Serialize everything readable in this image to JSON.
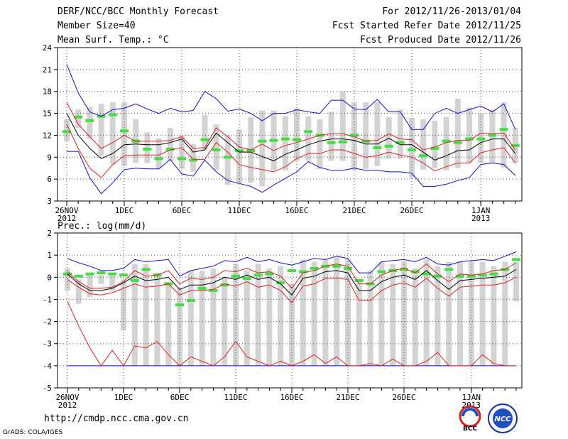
{
  "header": {
    "left": [
      "DERF/NCC/BCC Monthly Forecast",
      "Member Size=40",
      "Mean Surf. Temp.: °C"
    ],
    "right": [
      "For 2012/11/26-2013/01/04",
      "Fcst Started Refer Date 2012/11/25",
      "Fcst Produced Date 2012/11/26"
    ]
  },
  "footer": {
    "url": "http://cmdp.ncc.cma.gov.cn",
    "credit": "GrADS: COLA/IGES"
  },
  "logos": [
    {
      "name": "BCC",
      "label": "BCC"
    },
    {
      "name": "NCC",
      "label": "NCC"
    }
  ],
  "colors": {
    "box": "#d3d3d3",
    "median": "#44dd44",
    "mean": "#000000",
    "sigma": "#dd2222",
    "extreme": "#1111cc",
    "grid": "#555555"
  },
  "chart_data": [
    {
      "type": "box-ensemble",
      "title": "Mean Surf. Temp.: °C",
      "ylim": [
        3,
        24
      ],
      "yticks": [
        3,
        6,
        9,
        12,
        15,
        18,
        21,
        24
      ],
      "xticks": [
        {
          "day": 0,
          "label": "26NOV",
          "sub": "2012"
        },
        {
          "day": 5,
          "label": "1DEC",
          "sub": ""
        },
        {
          "day": 10,
          "label": "6DEC",
          "sub": ""
        },
        {
          "day": 15,
          "label": "11DEC",
          "sub": ""
        },
        {
          "day": 20,
          "label": "16DEC",
          "sub": ""
        },
        {
          "day": 25,
          "label": "21DEC",
          "sub": ""
        },
        {
          "day": 30,
          "label": "26DEC",
          "sub": ""
        },
        {
          "day": 36,
          "label": "1JAN",
          "sub": "2013"
        }
      ],
      "max": [
        21.7,
        17.8,
        15.2,
        14.6,
        15.5,
        15.7,
        16.3,
        15.6,
        15.0,
        15.7,
        15.2,
        15.4,
        18.0,
        17.0,
        15.3,
        15.6,
        15.0,
        14.0,
        15.0,
        15.0,
        15.5,
        15.2,
        15.0,
        16.8,
        16.8,
        15.6,
        15.5,
        16.9,
        15.2,
        15.2,
        12.8,
        12.8,
        15.0,
        15.7,
        15.0,
        15.5,
        16.0,
        15.2,
        16.3,
        12.8
      ],
      "plus1": [
        16.5,
        13.5,
        11.8,
        10.2,
        11.0,
        12.0,
        11.2,
        11.2,
        11.2,
        11.3,
        11.8,
        10.2,
        10.3,
        13.0,
        11.8,
        10.4,
        10.0,
        10.8,
        9.9,
        10.6,
        11.0,
        11.5,
        12.0,
        12.2,
        12.2,
        11.8,
        11.2,
        11.3,
        12.2,
        11.5,
        11.4,
        10.0,
        10.4,
        11.0,
        11.3,
        11.3,
        12.3,
        12.2,
        12.3,
        10.0
      ],
      "mean": [
        15.0,
        12.0,
        10.2,
        8.8,
        9.5,
        10.7,
        10.8,
        10.7,
        10.7,
        11.0,
        11.5,
        9.7,
        10.0,
        12.3,
        11.0,
        9.7,
        9.7,
        9.1,
        8.5,
        9.4,
        10.0,
        10.7,
        11.2,
        11.5,
        11.5,
        11.3,
        10.8,
        10.8,
        11.6,
        10.7,
        10.7,
        9.7,
        8.6,
        9.2,
        9.9,
        10.0,
        11.0,
        11.5,
        11.5,
        9.5
      ],
      "minus1": [
        13.5,
        10.2,
        7.5,
        6.2,
        8.0,
        9.2,
        9.3,
        9.3,
        9.3,
        10.0,
        10.3,
        8.7,
        8.7,
        11.0,
        9.7,
        8.0,
        7.6,
        7.3,
        7.0,
        7.7,
        8.8,
        9.5,
        9.5,
        10.0,
        10.0,
        9.5,
        9.0,
        9.2,
        9.7,
        9.3,
        9.0,
        8.2,
        7.1,
        7.7,
        8.2,
        8.2,
        9.6,
        10.0,
        10.3,
        8.2
      ],
      "min": [
        9.8,
        9.8,
        6.2,
        4.0,
        5.5,
        7.3,
        7.5,
        7.4,
        7.4,
        8.7,
        6.7,
        6.4,
        8.6,
        7.0,
        5.8,
        5.4,
        5.0,
        4.2,
        5.2,
        6.1,
        7.0,
        8.4,
        7.6,
        7.2,
        7.2,
        7.5,
        7.2,
        7.2,
        7.0,
        7.0,
        6.8,
        5.0,
        5.0,
        5.3,
        5.8,
        6.2,
        8.0,
        8.2,
        8.0,
        6.5
      ],
      "boxTop": [
        14.2,
        15.5,
        15.9,
        16.3,
        16.5,
        16.5,
        14.2,
        12.4,
        11.6,
        13.0,
        12.0,
        10.8,
        14.8,
        13.5,
        12.0,
        12.8,
        14.5,
        15.4,
        15.4,
        14.6,
        15.7,
        14.6,
        14.2,
        15.2,
        18.0,
        16.5,
        16.5,
        16.5,
        14.5,
        15.5,
        14.4,
        14.2,
        14.0,
        14.5,
        17.0,
        15.8,
        15.0,
        15.5,
        16.5,
        13.0
      ],
      "boxBot": [
        11.2,
        13.0,
        11.5,
        9.2,
        8.0,
        7.8,
        8.2,
        8.2,
        7.4,
        8.5,
        7.4,
        7.0,
        10.0,
        7.2,
        5.2,
        5.4,
        5.5,
        5.0,
        7.2,
        7.2,
        8.5,
        8.5,
        7.4,
        8.5,
        8.5,
        7.2,
        7.4,
        7.8,
        8.8,
        8.8,
        6.2,
        7.3,
        7.5,
        7.2,
        7.5,
        8.2,
        8.2,
        8.2,
        7.6,
        8.2
      ],
      "median": [
        12.5,
        14.5,
        14.0,
        14.6,
        14.8,
        12.6,
        11.2,
        10.1,
        8.8,
        10.1,
        8.8,
        8.6,
        11.4,
        10.0,
        9.0,
        9.9,
        9.9,
        11.2,
        11.3,
        11.5,
        11.4,
        12.5,
        12.0,
        11.0,
        11.1,
        12.0,
        11.2,
        10.3,
        10.5,
        11.0,
        10.0,
        9.2,
        10.2,
        11.2,
        11.0,
        11.5,
        11.5,
        12.0,
        12.8,
        10.6
      ]
    },
    {
      "type": "box-ensemble",
      "title": "Prec.: log(mm/d)",
      "ylim": [
        -5,
        2
      ],
      "yticks": [
        -5,
        -4,
        -3,
        -2,
        -1,
        0,
        1,
        2
      ],
      "xticks": [
        {
          "day": 0,
          "label": "26NOV",
          "sub": "2012"
        },
        {
          "day": 5,
          "label": "1DEC",
          "sub": ""
        },
        {
          "day": 10,
          "label": "6DEC",
          "sub": ""
        },
        {
          "day": 15,
          "label": "11DEC",
          "sub": ""
        },
        {
          "day": 20,
          "label": "16DEC",
          "sub": ""
        },
        {
          "day": 25,
          "label": "21DEC",
          "sub": ""
        },
        {
          "day": 30,
          "label": "26DEC",
          "sub": ""
        },
        {
          "day": 36,
          "label": "1JAN",
          "sub": "2013"
        }
      ],
      "max": [
        0.85,
        0.65,
        0.5,
        0.3,
        0.3,
        0.4,
        0.8,
        0.7,
        0.75,
        0.8,
        0.05,
        0.3,
        0.4,
        0.5,
        0.75,
        0.7,
        0.9,
        0.7,
        0.8,
        0.65,
        0.55,
        0.7,
        0.85,
        0.8,
        0.95,
        0.85,
        0.2,
        0.2,
        0.7,
        0.75,
        0.8,
        0.7,
        0.9,
        0.6,
        0.55,
        0.7,
        0.75,
        0.8,
        0.75,
        0.95,
        1.15
      ],
      "plus1": [
        0.25,
        -0.2,
        -0.5,
        -0.5,
        -0.45,
        -0.2,
        0.3,
        0.05,
        0.1,
        0.3,
        -0.3,
        -0.05,
        -0.1,
        0.0,
        0.3,
        0.25,
        0.4,
        0.2,
        0.25,
        0.05,
        -0.5,
        0.2,
        0.3,
        0.5,
        0.6,
        0.5,
        -0.3,
        -0.3,
        0.1,
        0.3,
        0.4,
        0.2,
        0.6,
        0.15,
        -0.2,
        0.15,
        0.1,
        0.15,
        0.3,
        0.35,
        0.65
      ],
      "mean": [
        0.15,
        -0.3,
        -0.6,
        -0.6,
        -0.5,
        -0.25,
        0.05,
        -0.15,
        -0.1,
        0.0,
        -0.55,
        -0.35,
        -0.35,
        -0.25,
        0.0,
        -0.1,
        0.1,
        -0.1,
        0.0,
        -0.3,
        -0.8,
        -0.05,
        0.05,
        0.25,
        0.3,
        0.2,
        -0.6,
        -0.6,
        -0.2,
        0.0,
        0.1,
        -0.1,
        0.3,
        -0.15,
        -0.55,
        -0.15,
        -0.1,
        -0.05,
        0.0,
        0.05,
        0.35
      ],
      "minus1": [
        -0.1,
        -0.45,
        -0.75,
        -0.8,
        -0.7,
        -0.5,
        -0.3,
        -0.45,
        -0.4,
        -0.3,
        -0.8,
        -0.6,
        -0.6,
        -0.55,
        -0.3,
        -0.4,
        -0.2,
        -0.45,
        -0.35,
        -0.6,
        -1.15,
        -0.4,
        -0.3,
        -0.05,
        -0.05,
        -0.1,
        -1.05,
        -1.05,
        -0.6,
        -0.35,
        -0.25,
        -0.45,
        -0.05,
        -0.5,
        -0.85,
        -0.45,
        -0.4,
        -0.35,
        -0.35,
        -0.25,
        0.0
      ],
      "min": [
        -1.1,
        -2.2,
        -3.2,
        -4.0,
        -3.3,
        -4.0,
        -3.1,
        -3.2,
        -2.9,
        -3.5,
        -4.0,
        -3.6,
        -3.8,
        -4.0,
        -3.6,
        -2.9,
        -3.6,
        -3.8,
        -4.0,
        -3.8,
        -4.0,
        -3.8,
        -3.5,
        -3.9,
        -3.6,
        -4.0,
        -4.0,
        -3.9,
        -4.0,
        -3.7,
        -4.0,
        -4.0,
        -3.8,
        -3.4,
        -4.0,
        -4.0,
        -4.0,
        -3.5,
        -3.9,
        -4.0,
        -4.0
      ],
      "lowLine": [
        -4.0,
        -4.0,
        -4.0,
        -4.0,
        -4.0,
        -4.0,
        -4.0,
        -4.0,
        -4.0,
        -4.0,
        -4.0,
        -4.0,
        -4.0,
        -4.0,
        -4.0,
        -4.0,
        -4.0,
        -4.0,
        -4.0,
        -4.0,
        -4.0,
        -4.0,
        -4.0,
        -4.0,
        -4.0,
        -4.0,
        -4.0,
        -4.0,
        -4.0,
        -4.0,
        -4.0,
        -4.0,
        -4.0,
        -4.0,
        -4.0,
        -4.0,
        -4.0,
        -4.0,
        -4.0,
        -4.0,
        -4.0
      ],
      "boxTop": [
        0.4,
        -0.1,
        0.1,
        0.1,
        0.2,
        -0.1,
        0.6,
        0.6,
        0.2,
        -0.2,
        -0.5,
        0.3,
        0.3,
        0.4,
        0.0,
        0.6,
        0.3,
        0.6,
        0.4,
        0.5,
        -0.3,
        0.8,
        0.7,
        0.8,
        0.9,
        0.8,
        -0.2,
        0.3,
        0.7,
        0.6,
        0.7,
        0.4,
        0.8,
        0.5,
        0.7,
        0.7,
        0.7,
        0.7,
        0.5,
        0.7,
        0.7
      ],
      "boxBot": [
        -0.6,
        -1.2,
        -0.9,
        -0.3,
        -0.6,
        -2.4,
        -4.0,
        -4.0,
        -4.0,
        -4.0,
        -4.0,
        -4.0,
        -4.0,
        -4.0,
        -4.0,
        -4.0,
        -4.0,
        -4.0,
        -4.0,
        -4.0,
        -4.0,
        -4.0,
        -4.0,
        -4.0,
        -4.0,
        -4.0,
        -4.0,
        -4.0,
        -4.0,
        -4.0,
        -4.0,
        -4.0,
        -4.0,
        -4.0,
        -4.0,
        -4.0,
        -4.0,
        -4.0,
        -4.0,
        -4.0,
        -1.1
      ],
      "median": [
        0.15,
        0.05,
        0.15,
        0.2,
        0.15,
        0.1,
        -0.15,
        0.35,
        0.1,
        -0.3,
        -1.25,
        -1.05,
        -0.5,
        -0.6,
        -0.35,
        0.05,
        -0.05,
        0.1,
        0.15,
        -0.25,
        0.3,
        0.25,
        0.4,
        0.5,
        0.5,
        0.4,
        -0.15,
        -0.3,
        0.25,
        0.3,
        0.35,
        0.25,
        0.15,
        0.05,
        0.35,
        0.05,
        0.05,
        0.1,
        0.15,
        0.35,
        0.8
      ]
    }
  ]
}
